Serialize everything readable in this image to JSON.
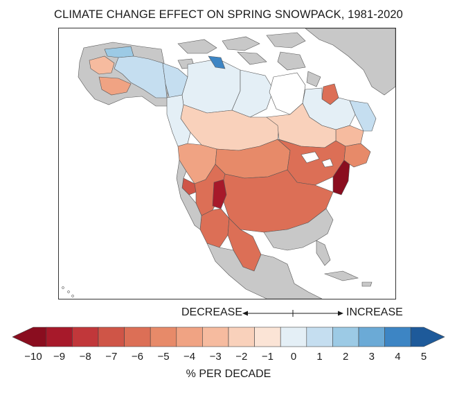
{
  "title": "CLIMATE CHANGE EFFECT ON SPRING SNOWPACK, 1981-2020",
  "legend": {
    "decrease_label": "DECREASE",
    "increase_label": "INCREASE",
    "unit_label": "% PER DECADE",
    "ticks": [
      "−10",
      "−9",
      "−8",
      "−7",
      "−6",
      "−5",
      "−4",
      "−3",
      "−2",
      "−1",
      "0",
      "1",
      "2",
      "3",
      "4",
      "5"
    ],
    "bins": [
      {
        "from": -10,
        "to": -9.5,
        "color": "#8a0d1f"
      },
      {
        "from": -9.5,
        "to": -8.5,
        "color": "#a7192a"
      },
      {
        "from": -8.5,
        "to": -7.5,
        "color": "#c1373a"
      },
      {
        "from": -7.5,
        "to": -6.5,
        "color": "#cf5547"
      },
      {
        "from": -6.5,
        "to": -5.5,
        "color": "#dc6f56"
      },
      {
        "from": -5.5,
        "to": -4.5,
        "color": "#e78a69"
      },
      {
        "from": -4.5,
        "to": -3.5,
        "color": "#f0a383"
      },
      {
        "from": -3.5,
        "to": -2.5,
        "color": "#f6bb9f"
      },
      {
        "from": -2.5,
        "to": -1.5,
        "color": "#f9d1bb"
      },
      {
        "from": -1.5,
        "to": -0.5,
        "color": "#fbe4d6"
      },
      {
        "from": -0.5,
        "to": 0.5,
        "color": "#e4eff6"
      },
      {
        "from": 0.5,
        "to": 1.5,
        "color": "#c5def0"
      },
      {
        "from": 1.5,
        "to": 2.5,
        "color": "#9ccae5"
      },
      {
        "from": 2.5,
        "to": 3.5,
        "color": "#6baad6"
      },
      {
        "from": 3.5,
        "to": 4.5,
        "color": "#3d85c4"
      },
      {
        "from": 4.5,
        "to": 5,
        "color": "#1e5a9a"
      }
    ]
  },
  "map": {
    "no_data_color": "#c8c8c8",
    "ocean_color": "#ffffff",
    "regions": [
      {
        "name": "alaska-north",
        "value": 1.5
      },
      {
        "name": "alaska-central",
        "value": 1
      },
      {
        "name": "alaska-south",
        "value": -3
      },
      {
        "name": "yukon",
        "value": 1
      },
      {
        "name": "hudson-bay-west",
        "value": 0
      },
      {
        "name": "mackenzie",
        "value": 0
      },
      {
        "name": "arctic-coast",
        "value": 3
      },
      {
        "name": "quebec-north",
        "value": -6
      },
      {
        "name": "labrador",
        "value": 0
      },
      {
        "name": "prairies",
        "value": -2
      },
      {
        "name": "great-lakes-north",
        "value": -2
      },
      {
        "name": "pacific-northwest",
        "value": -4
      },
      {
        "name": "missouri",
        "value": -5
      },
      {
        "name": "great-lakes",
        "value": -6
      },
      {
        "name": "mississippi",
        "value": -6
      },
      {
        "name": "sierra",
        "value": -7
      },
      {
        "name": "great-basin",
        "value": -6
      },
      {
        "name": "colorado",
        "value": -9
      },
      {
        "name": "southwest",
        "value": -6
      },
      {
        "name": "rio-grande",
        "value": -6
      },
      {
        "name": "northeast",
        "value": -10
      },
      {
        "name": "maritimes",
        "value": -5
      }
    ]
  }
}
